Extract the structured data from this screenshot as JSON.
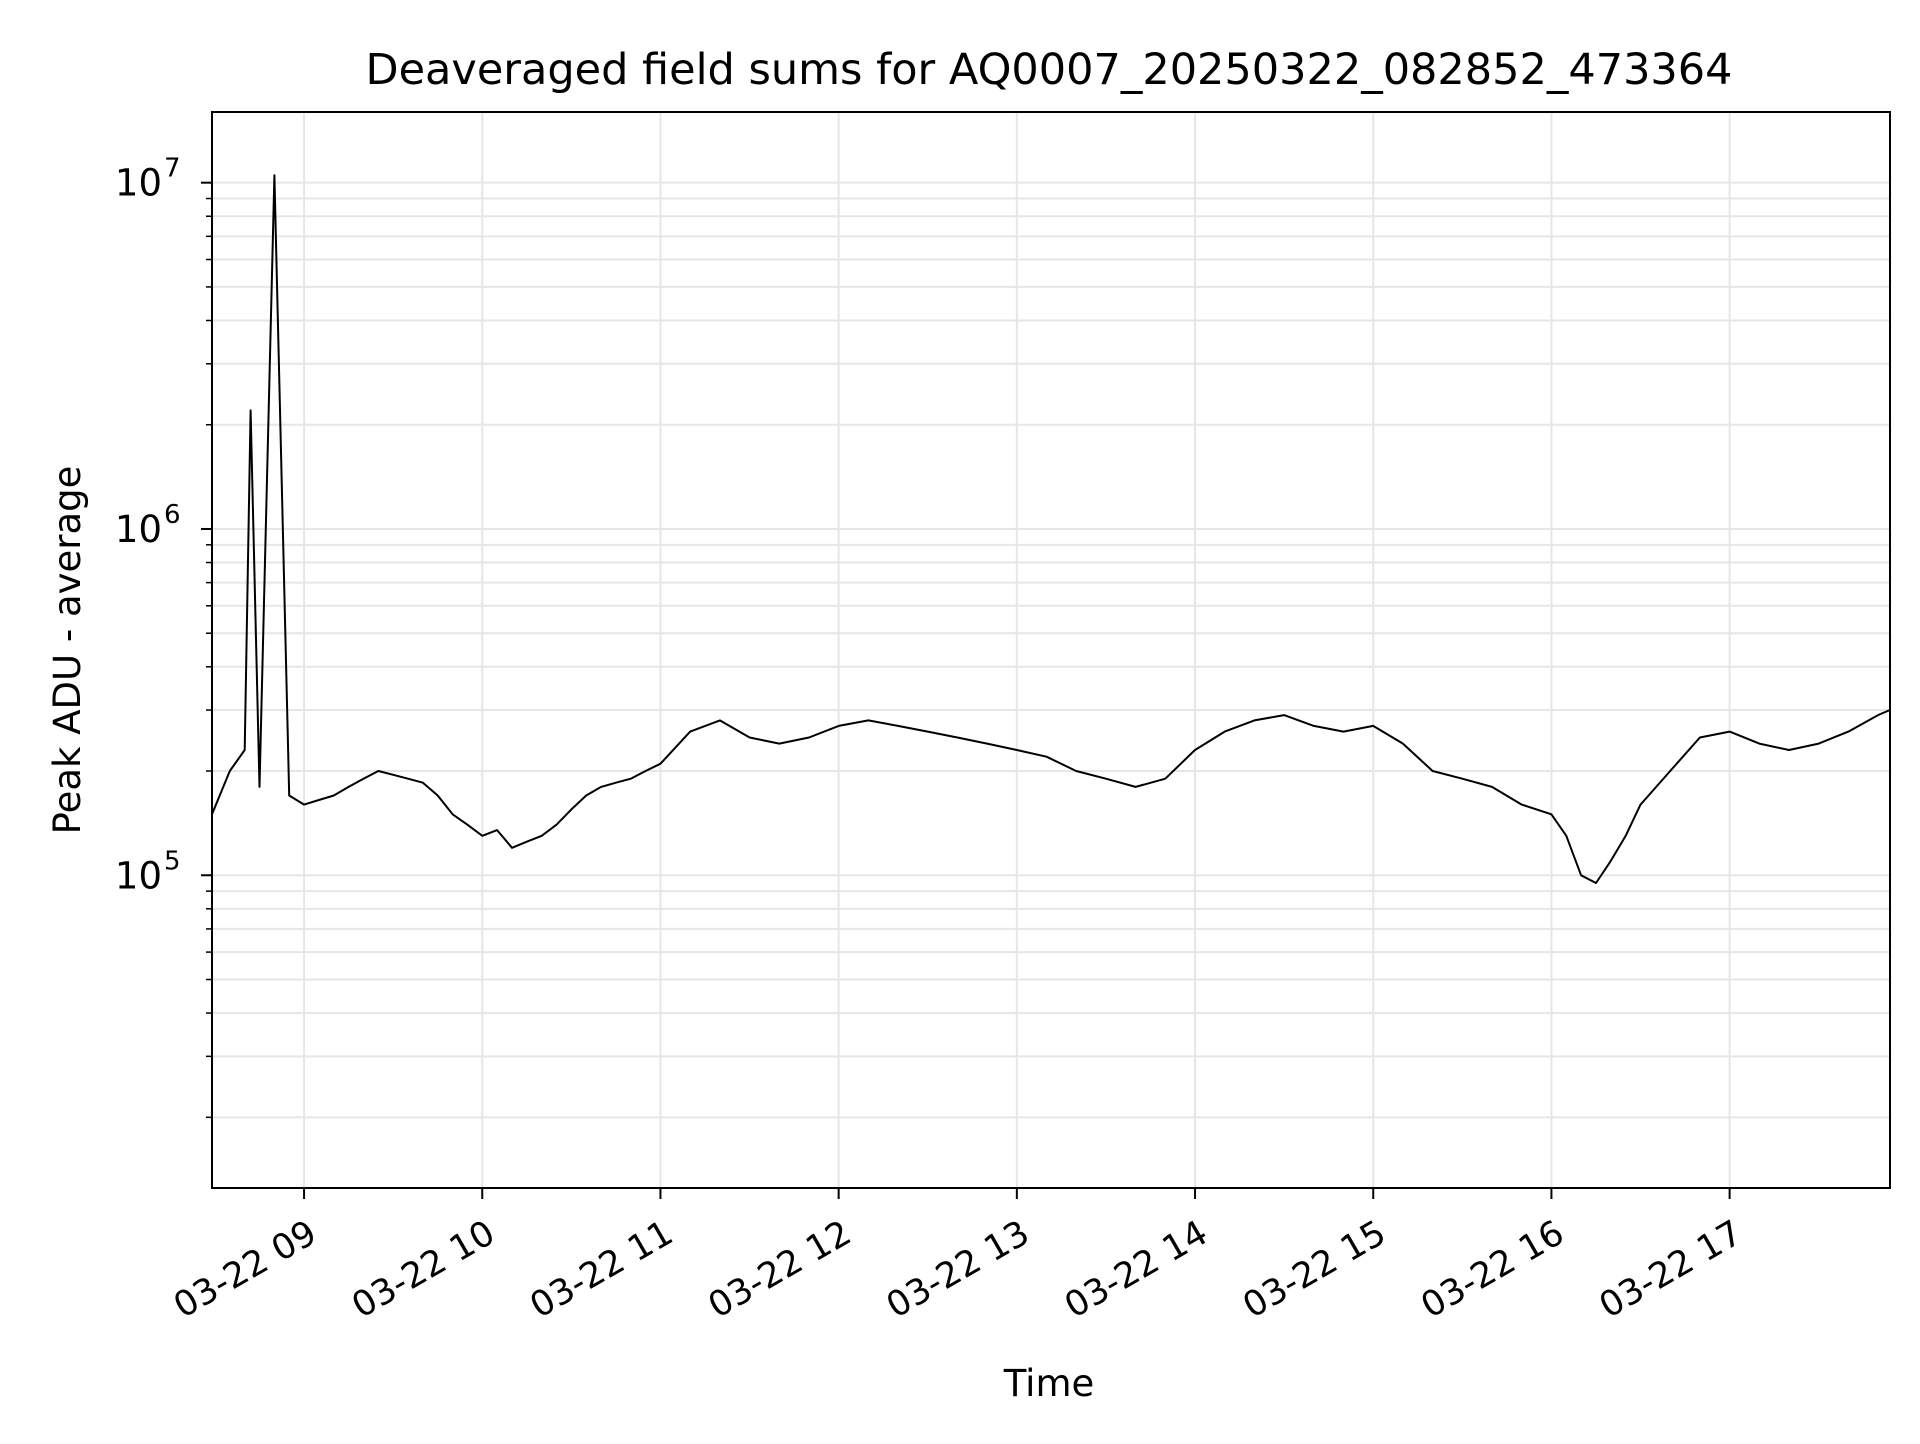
{
  "chart_data": {
    "type": "line",
    "title": "Deaveraged field sums for AQ0007_20250322_082852_473364",
    "xlabel": "Time",
    "ylabel": "Peak ADU - average",
    "yscale": "log",
    "grid": true,
    "legend": "none",
    "xlim": [
      "2025-03-22 08:29",
      "2025-03-22 17:54"
    ],
    "ylim": [
      12500,
      16000000
    ],
    "x_ticks": [
      {
        "value": "2025-03-22 09:00",
        "label": "03-22 09"
      },
      {
        "value": "2025-03-22 10:00",
        "label": "03-22 10"
      },
      {
        "value": "2025-03-22 11:00",
        "label": "03-22 11"
      },
      {
        "value": "2025-03-22 12:00",
        "label": "03-22 12"
      },
      {
        "value": "2025-03-22 13:00",
        "label": "03-22 13"
      },
      {
        "value": "2025-03-22 14:00",
        "label": "03-22 14"
      },
      {
        "value": "2025-03-22 15:00",
        "label": "03-22 15"
      },
      {
        "value": "2025-03-22 16:00",
        "label": "03-22 16"
      },
      {
        "value": "2025-03-22 17:00",
        "label": "03-22 17"
      }
    ],
    "y_ticks": [
      {
        "value": 100000,
        "base": "10",
        "exp": "5"
      },
      {
        "value": 1000000,
        "base": "10",
        "exp": "6"
      },
      {
        "value": 10000000,
        "base": "10",
        "exp": "7"
      }
    ],
    "colors": {
      "line": "#000000",
      "grid": "#e6e6e6",
      "axes": "#000000"
    },
    "series": [
      {
        "x": [
          "2025-03-22 08:29",
          "2025-03-22 08:35",
          "2025-03-22 08:40",
          "2025-03-22 08:42",
          "2025-03-22 08:45",
          "2025-03-22 08:50",
          "2025-03-22 08:55",
          "2025-03-22 09:00",
          "2025-03-22 09:05",
          "2025-03-22 09:10",
          "2025-03-22 09:15",
          "2025-03-22 09:20",
          "2025-03-22 09:25",
          "2025-03-22 09:30",
          "2025-03-22 09:35",
          "2025-03-22 09:40",
          "2025-03-22 09:45",
          "2025-03-22 09:50",
          "2025-03-22 09:55",
          "2025-03-22 10:00",
          "2025-03-22 10:05",
          "2025-03-22 10:10",
          "2025-03-22 10:15",
          "2025-03-22 10:20",
          "2025-03-22 10:25",
          "2025-03-22 10:30",
          "2025-03-22 10:35",
          "2025-03-22 10:40",
          "2025-03-22 10:45",
          "2025-03-22 10:50",
          "2025-03-22 10:55",
          "2025-03-22 11:00",
          "2025-03-22 11:10",
          "2025-03-22 11:20",
          "2025-03-22 11:30",
          "2025-03-22 11:40",
          "2025-03-22 11:50",
          "2025-03-22 12:00",
          "2025-03-22 12:10",
          "2025-03-22 12:20",
          "2025-03-22 12:30",
          "2025-03-22 12:40",
          "2025-03-22 12:50",
          "2025-03-22 13:00",
          "2025-03-22 13:10",
          "2025-03-22 13:20",
          "2025-03-22 13:30",
          "2025-03-22 13:40",
          "2025-03-22 13:50",
          "2025-03-22 14:00",
          "2025-03-22 14:10",
          "2025-03-22 14:20",
          "2025-03-22 14:30",
          "2025-03-22 14:40",
          "2025-03-22 14:50",
          "2025-03-22 15:00",
          "2025-03-22 15:10",
          "2025-03-22 15:20",
          "2025-03-22 15:30",
          "2025-03-22 15:40",
          "2025-03-22 15:50",
          "2025-03-22 16:00",
          "2025-03-22 16:05",
          "2025-03-22 16:10",
          "2025-03-22 16:15",
          "2025-03-22 16:20",
          "2025-03-22 16:25",
          "2025-03-22 16:30",
          "2025-03-22 16:40",
          "2025-03-22 16:50",
          "2025-03-22 17:00",
          "2025-03-22 17:10",
          "2025-03-22 17:20",
          "2025-03-22 17:30",
          "2025-03-22 17:40",
          "2025-03-22 17:50",
          "2025-03-22 17:54"
        ],
        "y": [
          150000,
          200000,
          230000,
          2200000,
          180000,
          10500000,
          170000,
          160000,
          165000,
          170000,
          180000,
          190000,
          200000,
          195000,
          190000,
          185000,
          170000,
          150000,
          140000,
          130000,
          135000,
          120000,
          125000,
          130000,
          140000,
          155000,
          170000,
          180000,
          185000,
          190000,
          200000,
          210000,
          260000,
          280000,
          250000,
          240000,
          250000,
          270000,
          280000,
          270000,
          260000,
          250000,
          240000,
          230000,
          220000,
          200000,
          190000,
          180000,
          190000,
          230000,
          260000,
          280000,
          290000,
          270000,
          260000,
          270000,
          240000,
          200000,
          190000,
          180000,
          160000,
          150000,
          130000,
          100000,
          95000,
          110000,
          130000,
          160000,
          200000,
          250000,
          260000,
          240000,
          230000,
          240000,
          260000,
          290000,
          300000
        ]
      }
    ]
  }
}
